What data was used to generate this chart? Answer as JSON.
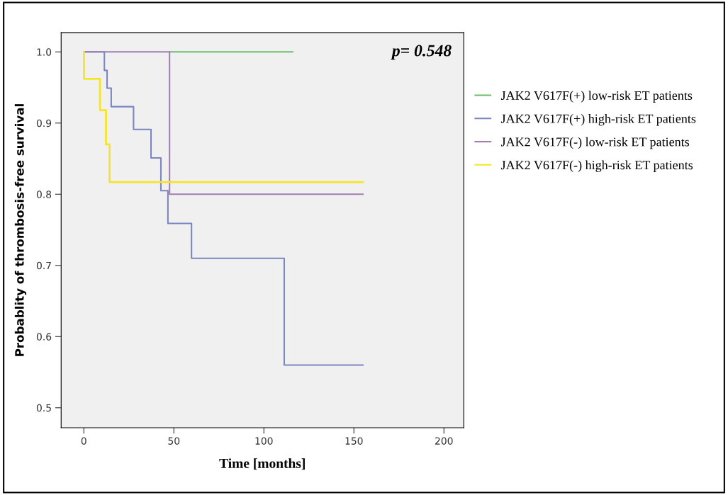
{
  "chart_data": {
    "type": "step",
    "xlabel": "Time [months]",
    "ylabel": "Probablity of thrombosis-free survival",
    "annotations": [
      "p= 0.548"
    ],
    "xlim": [
      -12.6,
      211
    ],
    "ylim": [
      0.472,
      1.027
    ],
    "xticks": [
      0,
      50,
      100,
      150,
      200
    ],
    "yticks": [
      {
        "value": 0.5,
        "label": "0.5"
      },
      {
        "value": 0.6,
        "label": "0.6"
      },
      {
        "value": 0.7,
        "label": "0.7"
      },
      {
        "value": 0.8,
        "label": "0.8"
      },
      {
        "value": 0.9,
        "label": "0.9"
      },
      {
        "value": 1.0,
        "label": "1.0"
      }
    ],
    "grid": false,
    "legend": "right",
    "marker": "none",
    "line_style": "solid",
    "series": [
      {
        "name": "JAK2 V617F(+) low-risk ET patients",
        "color": "#6dbf6d",
        "x": [
          47.6,
          116
        ],
        "values": [
          1.0,
          1.0
        ]
      },
      {
        "name": "JAK2 V617F(+) high-risk ET patients",
        "color": "#7b86c0",
        "x": [
          0,
          11.4,
          12.9,
          15.2,
          27.6,
          37.3,
          42.8,
          46.7,
          59.8,
          111.3,
          155
        ],
        "values": [
          1.0,
          0.974,
          0.949,
          0.923,
          0.891,
          0.851,
          0.805,
          0.759,
          0.71,
          0.56,
          0.56
        ]
      },
      {
        "name": "JAK2 V617F(-) low-risk ET patients",
        "color": "#a07fb0",
        "x": [
          0,
          47.6,
          155
        ],
        "values": [
          1.0,
          0.8,
          0.8
        ]
      },
      {
        "name": "JAK2 V617F(-) high-risk ET patients",
        "color": "#f5e52a",
        "x": [
          0,
          0.1,
          9,
          12.3,
          14.3,
          155
        ],
        "values": [
          1.0,
          0.962,
          0.918,
          0.87,
          0.817,
          0.817
        ]
      }
    ]
  }
}
